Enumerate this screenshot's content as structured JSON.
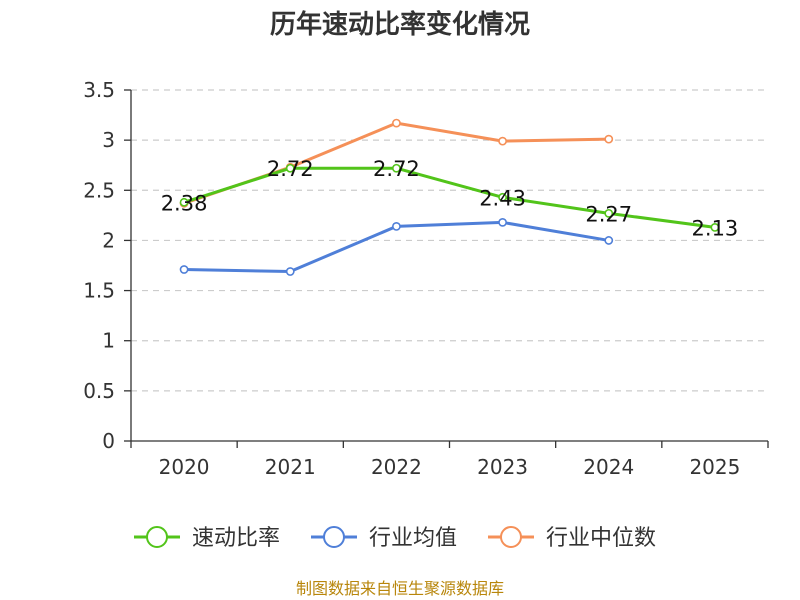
{
  "chart_data": {
    "type": "line",
    "title": "历年速动比率变化情况",
    "categories": [
      "2020",
      "2021",
      "2022",
      "2023",
      "2024",
      "2025"
    ],
    "ylim": [
      0,
      3.5
    ],
    "yticks": [
      "0",
      "0.5",
      "1",
      "1.5",
      "2",
      "2.5",
      "3",
      "3.5"
    ],
    "grid": true,
    "legend_position": "bottom",
    "series": [
      {
        "name": "速动比率",
        "color": "#52c41a",
        "values": [
          2.38,
          2.72,
          2.72,
          2.43,
          2.27,
          2.13
        ],
        "labels": [
          "2.38",
          "2.72",
          "2.72",
          "2.43",
          "2.27",
          "2.13"
        ]
      },
      {
        "name": "行业均值",
        "color": "#4f7fd8",
        "values": [
          1.71,
          1.69,
          2.14,
          2.18,
          2.0,
          null
        ]
      },
      {
        "name": "行业中位数",
        "color": "#f59058",
        "values": [
          2.37,
          2.73,
          3.17,
          2.99,
          3.01,
          null
        ]
      }
    ],
    "source": "制图数据来自恒生聚源数据库"
  }
}
